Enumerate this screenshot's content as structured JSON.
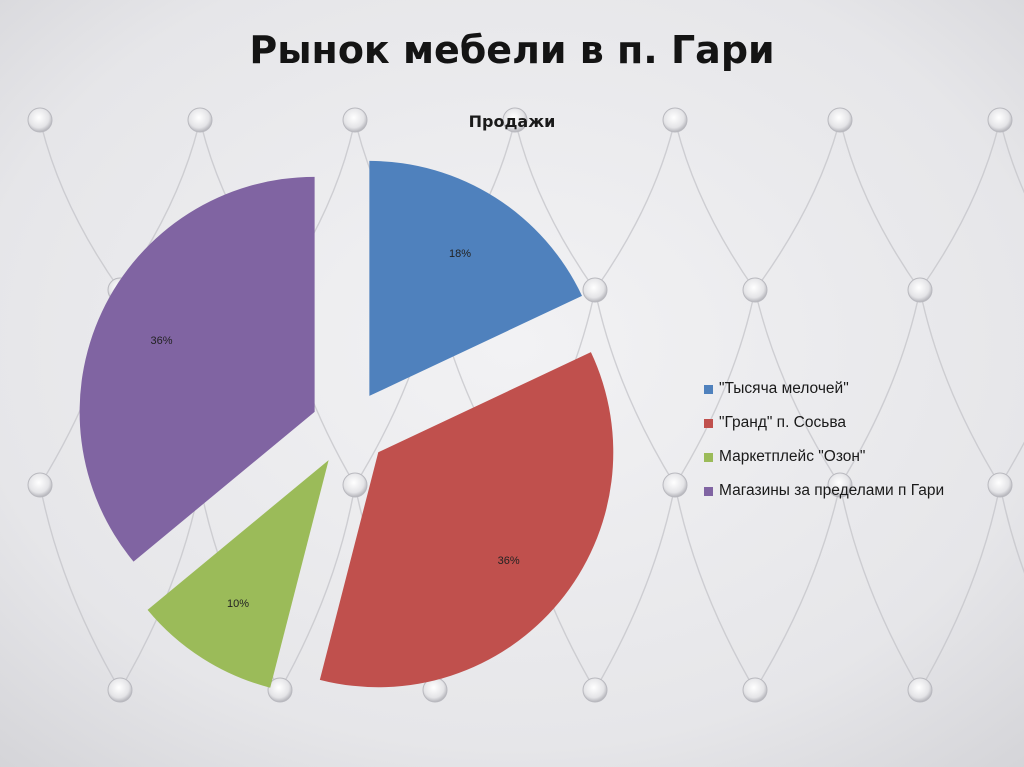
{
  "slide": {
    "title": "Рынок мебели в п. Гари"
  },
  "chart_data": {
    "type": "pie",
    "title": "Продажи",
    "exploded": true,
    "start_angle_deg": 90,
    "direction": "clockwise",
    "legend_position": "right",
    "slices": [
      {
        "label": "\"Тысяча мелочей\"",
        "value": 18,
        "display": "18%",
        "color": "#4f81bd"
      },
      {
        "label": "\"Гранд\" п. Сосьва",
        "value": 36,
        "display": "36%",
        "color": "#c0504d"
      },
      {
        "label": "Маркетплейс \"Озон\"",
        "value": 10,
        "display": "10%",
        "color": "#9bbb59"
      },
      {
        "label": "Магазины за пределами п Гари",
        "value": 36,
        "display": "36%",
        "color": "#8064a2"
      }
    ]
  }
}
